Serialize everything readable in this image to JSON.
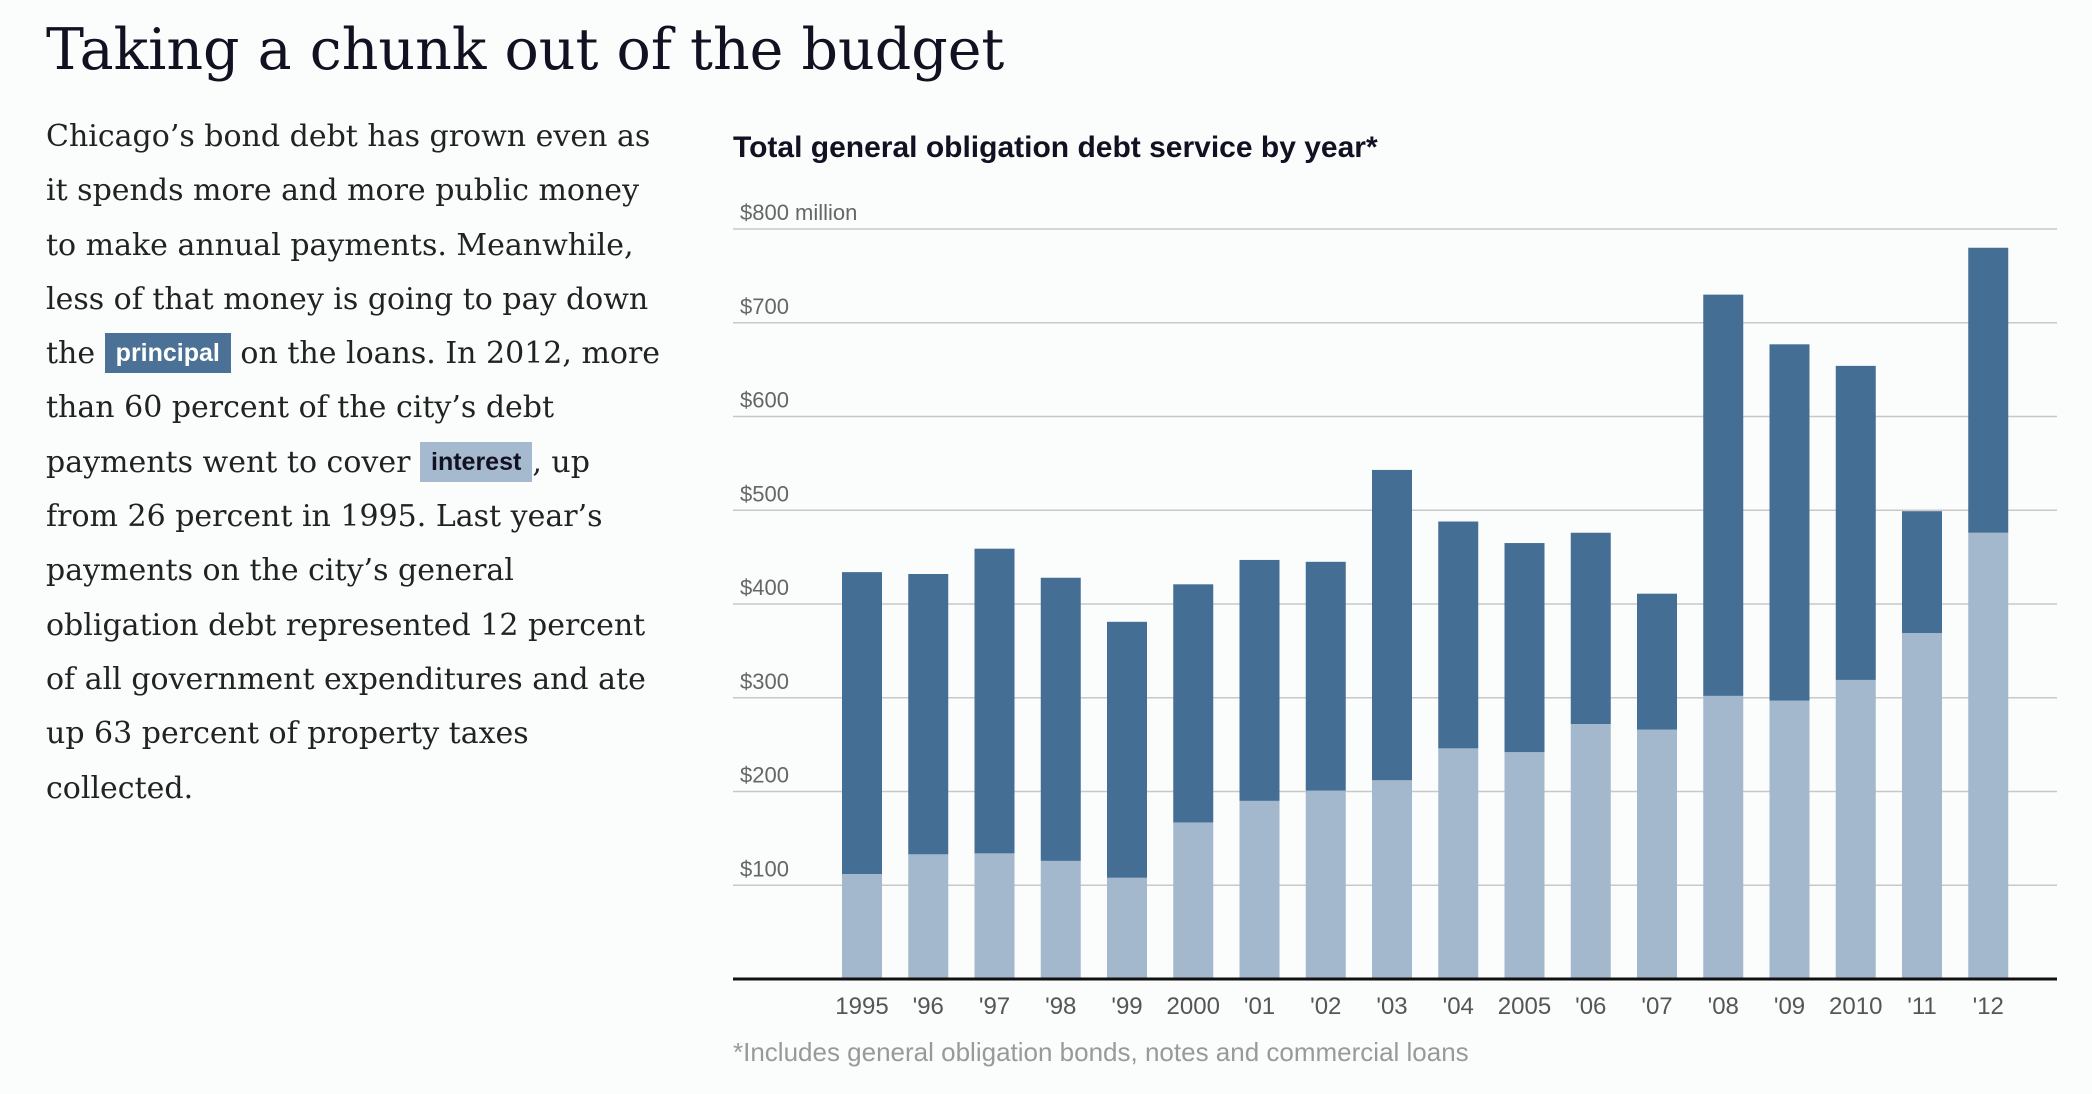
{
  "headline": "Taking a chunk out of the budget",
  "intro": {
    "before_principal": "Chicago’s bond debt has grown even as it spends more and more public money to make annual payments. Meanwhile, less of that money is going to pay down the ",
    "principal_label": "principal",
    "middle": " on the loans. In 2012, more than 60 percent of the city’s debt payments went to cover ",
    "interest_label": "interest",
    "after_interest": ", up from 26 percent in 1995. Last year’s payments on the city’s general obligation debt represented 12 percent of all government expenditures and ate up 63 percent of property taxes collected."
  },
  "chart_data": {
    "type": "bar",
    "stacked": true,
    "title": "Total general obligation debt service by year*",
    "note": "*Includes general obligation bonds, notes and commercial loans",
    "unit_label": "million",
    "ylim": [
      0,
      800
    ],
    "yticks": [
      100,
      200,
      300,
      400,
      500,
      600,
      700,
      800
    ],
    "ytick_labels": [
      "$100",
      "$200",
      "$300",
      "$400",
      "$500",
      "$600",
      "$700",
      "$800 million"
    ],
    "grid": true,
    "categories": [
      "1995",
      "'96",
      "'97",
      "'98",
      "'99",
      "2000",
      "'01",
      "'02",
      "'03",
      "'04",
      "2005",
      "'06",
      "'07",
      "'08",
      "'09",
      "2010",
      "'11",
      "'12"
    ],
    "series": [
      {
        "name": "interest",
        "color": "#a3b8cc",
        "values": [
          112,
          133,
          134,
          126,
          108,
          167,
          190,
          201,
          212,
          246,
          242,
          272,
          266,
          302,
          297,
          319,
          369,
          476
        ]
      },
      {
        "name": "principal",
        "color": "#446e94",
        "values": [
          322,
          299,
          325,
          302,
          273,
          254,
          257,
          244,
          331,
          242,
          223,
          204,
          145,
          428,
          380,
          335,
          130,
          304
        ]
      }
    ],
    "totals": [
      434,
      432,
      459,
      428,
      381,
      421,
      447,
      445,
      543,
      488,
      465,
      476,
      411,
      730,
      677,
      654,
      499,
      780
    ]
  }
}
